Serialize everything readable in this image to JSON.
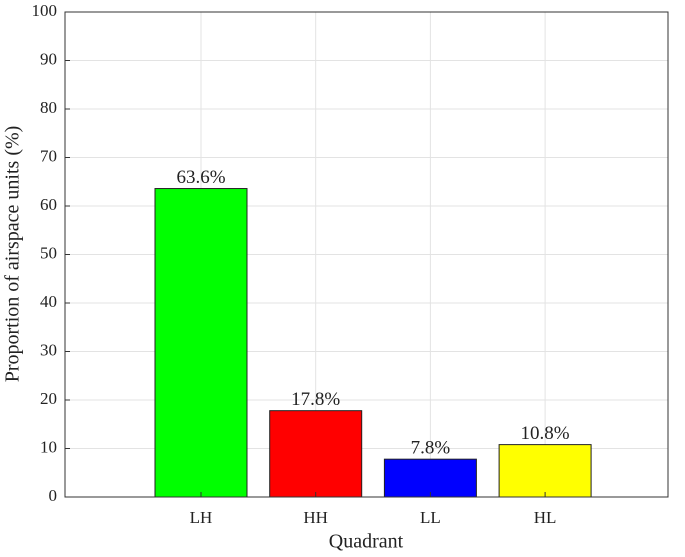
{
  "chart_data": {
    "type": "bar",
    "categories": [
      "LH",
      "HH",
      "LL",
      "HL"
    ],
    "values": [
      63.6,
      17.8,
      7.8,
      10.8
    ],
    "value_labels": [
      "63.6%",
      "17.8%",
      "7.8%",
      "10.8%"
    ],
    "colors": [
      "#00ff00",
      "#ff0000",
      "#0000ff",
      "#ffff00"
    ],
    "xlabel": "Quadrant",
    "ylabel": "Proportion of airspace units (%)",
    "ylim": [
      0,
      100
    ],
    "yticks": [
      0,
      10,
      20,
      30,
      40,
      50,
      60,
      70,
      80,
      90,
      100
    ],
    "grid": true
  }
}
